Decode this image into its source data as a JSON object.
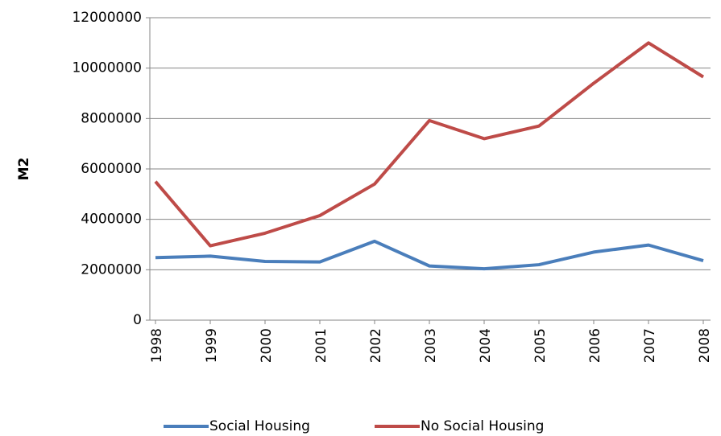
{
  "chart_data": {
    "type": "line",
    "y_label": "M2",
    "categories": [
      "1998",
      "1999",
      "2000",
      "2001",
      "2002",
      "2003",
      "2004",
      "2005",
      "2006",
      "2007",
      "2008"
    ],
    "series": [
      {
        "name": "Social Housing",
        "color": "#4a7ebb",
        "values": [
          2480000,
          2540000,
          2330000,
          2310000,
          3130000,
          2150000,
          2040000,
          2200000,
          2700000,
          2980000,
          2360000
        ]
      },
      {
        "name": "No Social Housing",
        "color": "#be4b48",
        "values": [
          5500000,
          2950000,
          3450000,
          4150000,
          5400000,
          7920000,
          7200000,
          7700000,
          9400000,
          11000000,
          9650000
        ]
      }
    ],
    "ylim": [
      0,
      12000000
    ],
    "yticks": [
      0,
      2000000,
      4000000,
      6000000,
      8000000,
      10000000,
      12000000
    ],
    "grid": true,
    "legend": "bottom"
  }
}
